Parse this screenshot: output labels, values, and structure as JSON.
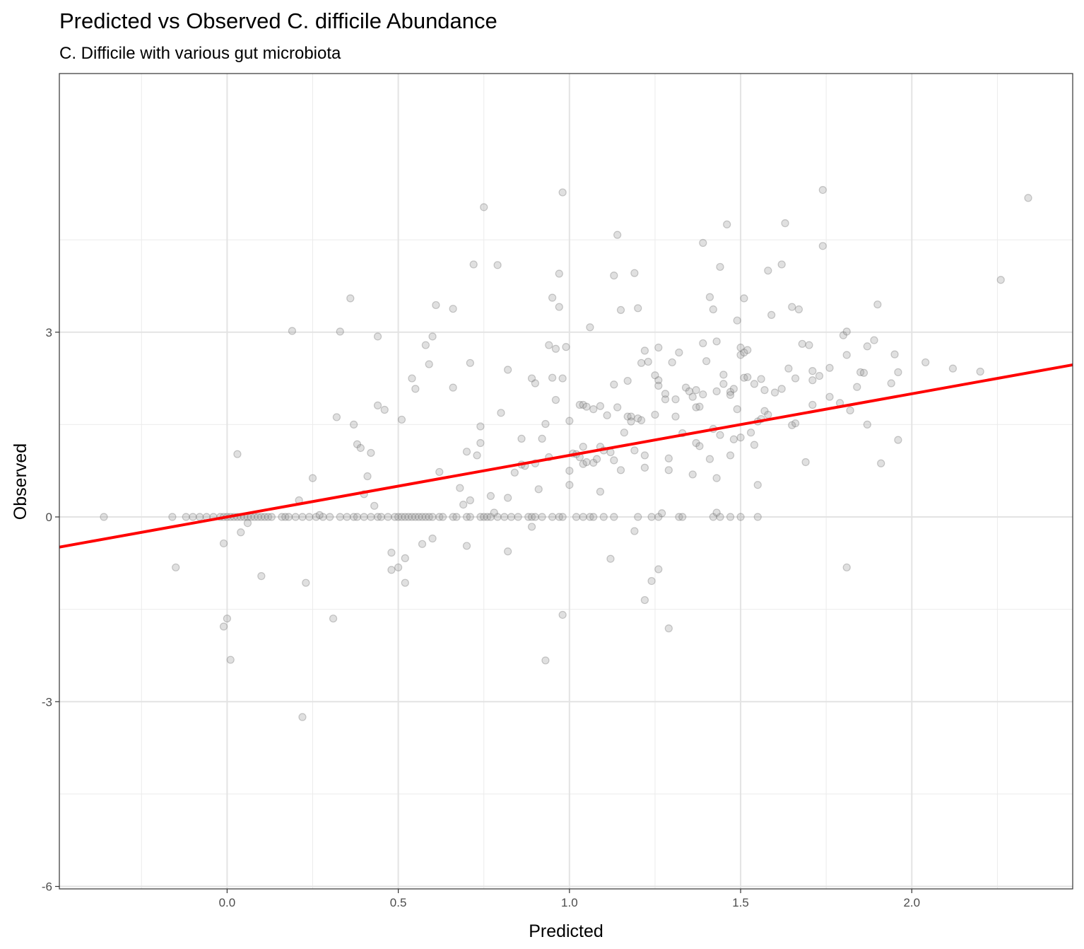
{
  "chart_data": {
    "type": "scatter",
    "title": "Predicted vs Observed C. difficile Abundance",
    "subtitle": "C. Difficile with various gut microbiota",
    "xlabel": "Predicted",
    "ylabel": "Observed",
    "xlim": [
      -0.49,
      2.47
    ],
    "ylim": [
      -6.04,
      7.2
    ],
    "x_ticks": [
      0.0,
      0.5,
      1.0,
      1.5,
      2.0
    ],
    "x_tick_labels": [
      "0.0",
      "0.5",
      "1.0",
      "1.5",
      "2.0"
    ],
    "y_ticks": [
      -6,
      -3,
      0,
      3
    ],
    "y_tick_labels": [
      "-6",
      "-3",
      "0",
      "3"
    ],
    "grid": true,
    "legend": "none",
    "point_color": "#999999",
    "point_opacity": 0.3,
    "fit_line": {
      "color": "#ff0000",
      "intercept": 0.0,
      "slope": 1.0
    },
    "points": [
      [
        -0.36,
        0
      ],
      [
        -0.16,
        0
      ],
      [
        -0.12,
        0
      ],
      [
        -0.1,
        0
      ],
      [
        -0.08,
        0
      ],
      [
        -0.06,
        0
      ],
      [
        -0.04,
        0
      ],
      [
        -0.02,
        0
      ],
      [
        -0.01,
        0
      ],
      [
        0,
        0
      ],
      [
        0.01,
        0
      ],
      [
        0.02,
        0
      ],
      [
        0.03,
        0
      ],
      [
        0.04,
        0
      ],
      [
        0.05,
        0
      ],
      [
        0.06,
        0
      ],
      [
        0.07,
        0
      ],
      [
        0.08,
        0
      ],
      [
        0.09,
        0
      ],
      [
        0.1,
        0
      ],
      [
        0.11,
        0
      ],
      [
        0.12,
        0
      ],
      [
        0.13,
        0
      ],
      [
        0.16,
        0
      ],
      [
        0.17,
        0
      ],
      [
        0.18,
        0
      ],
      [
        0.2,
        0
      ],
      [
        0.22,
        0
      ],
      [
        0.24,
        0
      ],
      [
        0.26,
        0
      ],
      [
        0.28,
        0
      ],
      [
        0.3,
        0
      ],
      [
        0.33,
        0
      ],
      [
        0.35,
        0
      ],
      [
        0.37,
        0
      ],
      [
        0.38,
        0
      ],
      [
        0.4,
        0
      ],
      [
        0.42,
        0
      ],
      [
        0.44,
        0
      ],
      [
        0.45,
        0
      ],
      [
        0.47,
        0
      ],
      [
        0.49,
        0
      ],
      [
        0.5,
        0
      ],
      [
        0.51,
        0
      ],
      [
        0.52,
        0
      ],
      [
        0.53,
        0
      ],
      [
        0.54,
        0
      ],
      [
        0.55,
        0
      ],
      [
        0.56,
        0
      ],
      [
        0.57,
        0
      ],
      [
        0.58,
        0
      ],
      [
        0.59,
        0
      ],
      [
        0.6,
        0
      ],
      [
        0.62,
        0
      ],
      [
        0.63,
        0
      ],
      [
        0.66,
        0
      ],
      [
        0.67,
        0
      ],
      [
        0.7,
        0
      ],
      [
        0.71,
        0
      ],
      [
        0.74,
        0
      ],
      [
        0.75,
        0
      ],
      [
        0.76,
        0
      ],
      [
        0.77,
        0
      ],
      [
        0.79,
        0
      ],
      [
        0.81,
        0
      ],
      [
        0.83,
        0
      ],
      [
        0.85,
        0
      ],
      [
        0.88,
        0
      ],
      [
        0.89,
        0
      ],
      [
        0.9,
        0
      ],
      [
        0.92,
        0
      ],
      [
        0.95,
        0
      ],
      [
        0.97,
        0
      ],
      [
        0.98,
        0
      ],
      [
        1.02,
        0
      ],
      [
        1.04,
        0
      ],
      [
        1.06,
        0
      ],
      [
        1.07,
        0
      ],
      [
        1.1,
        0
      ],
      [
        1.13,
        0
      ],
      [
        1.2,
        0
      ],
      [
        1.24,
        0
      ],
      [
        1.26,
        0
      ],
      [
        1.32,
        0
      ],
      [
        1.33,
        0
      ],
      [
        1.42,
        0
      ],
      [
        1.44,
        0
      ],
      [
        1.47,
        0
      ],
      [
        1.5,
        0
      ],
      [
        1.55,
        0
      ],
      [
        0.03,
        1.02
      ],
      [
        0.04,
        -0.25
      ],
      [
        -0.01,
        -0.43
      ],
      [
        -0.15,
        -0.82
      ],
      [
        0.1,
        -0.96
      ],
      [
        -0.01,
        -1.78
      ],
      [
        0,
        -1.65
      ],
      [
        0.01,
        -2.32
      ],
      [
        0.06,
        -0.1
      ],
      [
        0.19,
        3.02
      ],
      [
        0.21,
        0.27
      ],
      [
        0.23,
        -1.07
      ],
      [
        0.22,
        -3.25
      ],
      [
        0.25,
        0.63
      ],
      [
        0.27,
        0.03
      ],
      [
        0.31,
        -1.65
      ],
      [
        0.32,
        1.62
      ],
      [
        0.33,
        3.01
      ],
      [
        0.36,
        3.55
      ],
      [
        0.37,
        1.5
      ],
      [
        0.38,
        1.18
      ],
      [
        0.39,
        1.12
      ],
      [
        0.4,
        0.37
      ],
      [
        0.41,
        0.66
      ],
      [
        0.42,
        1.04
      ],
      [
        0.43,
        0.18
      ],
      [
        0.44,
        2.93
      ],
      [
        0.44,
        1.81
      ],
      [
        0.46,
        1.74
      ],
      [
        0.48,
        -0.58
      ],
      [
        0.48,
        -0.86
      ],
      [
        0.5,
        -0.82
      ],
      [
        0.51,
        1.58
      ],
      [
        0.52,
        -0.67
      ],
      [
        0.52,
        -1.07
      ],
      [
        0.54,
        2.25
      ],
      [
        0.55,
        2.08
      ],
      [
        0.57,
        -0.44
      ],
      [
        0.58,
        2.79
      ],
      [
        0.59,
        2.48
      ],
      [
        0.6,
        2.93
      ],
      [
        0.6,
        -0.35
      ],
      [
        0.61,
        3.44
      ],
      [
        0.62,
        0.73
      ],
      [
        0.66,
        3.38
      ],
      [
        0.66,
        2.1
      ],
      [
        0.68,
        0.47
      ],
      [
        0.69,
        0.2
      ],
      [
        0.7,
        1.06
      ],
      [
        0.7,
        -0.47
      ],
      [
        0.71,
        2.5
      ],
      [
        0.71,
        0.27
      ],
      [
        0.72,
        4.1
      ],
      [
        0.73,
        1
      ],
      [
        0.74,
        1.47
      ],
      [
        0.74,
        1.2
      ],
      [
        0.75,
        5.03
      ],
      [
        0.77,
        0.34
      ],
      [
        0.78,
        0.07
      ],
      [
        0.79,
        4.09
      ],
      [
        0.8,
        1.69
      ],
      [
        0.82,
        2.39
      ],
      [
        0.82,
        -0.56
      ],
      [
        0.82,
        0.31
      ],
      [
        0.84,
        0.72
      ],
      [
        0.86,
        1.27
      ],
      [
        0.86,
        0.85
      ],
      [
        0.87,
        0.83
      ],
      [
        0.89,
        2.25
      ],
      [
        0.89,
        -0.16
      ],
      [
        0.9,
        2.17
      ],
      [
        0.9,
        0.87
      ],
      [
        0.91,
        0.45
      ],
      [
        0.92,
        1.27
      ],
      [
        0.93,
        -2.33
      ],
      [
        0.93,
        1.51
      ],
      [
        0.94,
        2.79
      ],
      [
        0.94,
        0.97
      ],
      [
        0.95,
        3.56
      ],
      [
        0.95,
        2.26
      ],
      [
        0.96,
        2.73
      ],
      [
        0.96,
        1.9
      ],
      [
        0.97,
        3.95
      ],
      [
        0.97,
        3.41
      ],
      [
        0.98,
        5.27
      ],
      [
        0.98,
        2.25
      ],
      [
        0.98,
        -1.59
      ],
      [
        0.99,
        2.76
      ],
      [
        1,
        1.56
      ],
      [
        1,
        0.75
      ],
      [
        1,
        0.52
      ],
      [
        1.01,
        1.03
      ],
      [
        1.02,
        1.02
      ],
      [
        1.03,
        0.97
      ],
      [
        1.03,
        1.82
      ],
      [
        1.04,
        1.82
      ],
      [
        1.04,
        1.14
      ],
      [
        1.04,
        0.86
      ],
      [
        1.05,
        0.89
      ],
      [
        1.05,
        1.79
      ],
      [
        1.06,
        3.08
      ],
      [
        1.07,
        1.75
      ],
      [
        1.07,
        0.88
      ],
      [
        1.08,
        0.94
      ],
      [
        1.09,
        1.14
      ],
      [
        1.09,
        1.8
      ],
      [
        1.09,
        0.41
      ],
      [
        1.1,
        1.08
      ],
      [
        1.11,
        1.65
      ],
      [
        1.12,
        -0.68
      ],
      [
        1.12,
        1.05
      ],
      [
        1.13,
        3.92
      ],
      [
        1.13,
        2.15
      ],
      [
        1.13,
        0.92
      ],
      [
        1.14,
        1.78
      ],
      [
        1.14,
        4.58
      ],
      [
        1.15,
        0.76
      ],
      [
        1.15,
        3.36
      ],
      [
        1.16,
        1.37
      ],
      [
        1.17,
        2.21
      ],
      [
        1.17,
        1.63
      ],
      [
        1.18,
        1.63
      ],
      [
        1.18,
        1.55
      ],
      [
        1.19,
        3.96
      ],
      [
        1.19,
        1.08
      ],
      [
        1.19,
        -0.23
      ],
      [
        1.2,
        1.6
      ],
      [
        1.2,
        3.39
      ],
      [
        1.21,
        2.5
      ],
      [
        1.21,
        1.57
      ],
      [
        1.22,
        0.8
      ],
      [
        1.22,
        1
      ],
      [
        1.22,
        2.7
      ],
      [
        1.22,
        -1.35
      ],
      [
        1.23,
        2.52
      ],
      [
        1.24,
        -1.04
      ],
      [
        1.25,
        2.3
      ],
      [
        1.25,
        1.66
      ],
      [
        1.26,
        2.22
      ],
      [
        1.26,
        2.13
      ],
      [
        1.26,
        2.75
      ],
      [
        1.26,
        -0.85
      ],
      [
        1.27,
        0.06
      ],
      [
        1.28,
        1.91
      ],
      [
        1.28,
        2
      ],
      [
        1.29,
        0.95
      ],
      [
        1.29,
        0.76
      ],
      [
        1.29,
        -1.81
      ],
      [
        1.3,
        2.51
      ],
      [
        1.31,
        1.91
      ],
      [
        1.31,
        1.63
      ],
      [
        1.32,
        2.67
      ],
      [
        1.33,
        1.36
      ],
      [
        1.34,
        2.1
      ],
      [
        1.35,
        2.04
      ],
      [
        1.36,
        1.95
      ],
      [
        1.36,
        0.69
      ],
      [
        1.37,
        2.06
      ],
      [
        1.37,
        1.2
      ],
      [
        1.37,
        1.78
      ],
      [
        1.38,
        1.79
      ],
      [
        1.38,
        1.15
      ],
      [
        1.39,
        4.45
      ],
      [
        1.39,
        2.82
      ],
      [
        1.39,
        1.99
      ],
      [
        1.4,
        2.53
      ],
      [
        1.41,
        3.57
      ],
      [
        1.41,
        0.94
      ],
      [
        1.42,
        3.37
      ],
      [
        1.42,
        1.43
      ],
      [
        1.43,
        2.85
      ],
      [
        1.43,
        2.04
      ],
      [
        1.43,
        0.63
      ],
      [
        1.43,
        0.07
      ],
      [
        1.44,
        4.06
      ],
      [
        1.44,
        1.33
      ],
      [
        1.45,
        2.31
      ],
      [
        1.45,
        2.16
      ],
      [
        1.46,
        4.75
      ],
      [
        1.47,
        2.03
      ],
      [
        1.47,
        1.98
      ],
      [
        1.47,
        1
      ],
      [
        1.48,
        2.08
      ],
      [
        1.48,
        1.26
      ],
      [
        1.49,
        3.19
      ],
      [
        1.49,
        1.75
      ],
      [
        1.5,
        2.75
      ],
      [
        1.5,
        1.29
      ],
      [
        1.5,
        2.63
      ],
      [
        1.51,
        3.55
      ],
      [
        1.51,
        2.26
      ],
      [
        1.51,
        2.67
      ],
      [
        1.52,
        2.27
      ],
      [
        1.52,
        2.71
      ],
      [
        1.53,
        1.37
      ],
      [
        1.54,
        2.16
      ],
      [
        1.54,
        1.17
      ],
      [
        1.55,
        0.52
      ],
      [
        1.55,
        1.55
      ],
      [
        1.56,
        2.24
      ],
      [
        1.56,
        1.59
      ],
      [
        1.57,
        2.06
      ],
      [
        1.57,
        1.72
      ],
      [
        1.58,
        1.66
      ],
      [
        1.58,
        4
      ],
      [
        1.59,
        3.28
      ],
      [
        1.6,
        2.02
      ],
      [
        1.62,
        2.08
      ],
      [
        1.62,
        4.1
      ],
      [
        1.63,
        4.77
      ],
      [
        1.64,
        2.41
      ],
      [
        1.65,
        1.49
      ],
      [
        1.65,
        3.41
      ],
      [
        1.66,
        2.25
      ],
      [
        1.66,
        1.52
      ],
      [
        1.67,
        3.37
      ],
      [
        1.68,
        2.81
      ],
      [
        1.69,
        0.89
      ],
      [
        1.7,
        2.79
      ],
      [
        1.71,
        2.22
      ],
      [
        1.71,
        2.37
      ],
      [
        1.71,
        1.82
      ],
      [
        1.73,
        2.29
      ],
      [
        1.74,
        4.4
      ],
      [
        1.74,
        5.31
      ],
      [
        1.76,
        2.42
      ],
      [
        1.76,
        1.95
      ],
      [
        1.79,
        1.85
      ],
      [
        1.8,
        2.95
      ],
      [
        1.81,
        2.63
      ],
      [
        1.81,
        3.01
      ],
      [
        1.81,
        -0.82
      ],
      [
        1.82,
        1.73
      ],
      [
        1.84,
        2.11
      ],
      [
        1.85,
        2.35
      ],
      [
        1.86,
        2.34
      ],
      [
        1.87,
        1.5
      ],
      [
        1.87,
        2.77
      ],
      [
        1.89,
        2.87
      ],
      [
        1.9,
        3.45
      ],
      [
        1.91,
        0.87
      ],
      [
        1.94,
        2.17
      ],
      [
        1.95,
        2.64
      ],
      [
        1.96,
        2.35
      ],
      [
        1.96,
        1.25
      ],
      [
        2.04,
        2.51
      ],
      [
        2.12,
        2.41
      ],
      [
        2.2,
        2.36
      ],
      [
        2.26,
        3.85
      ],
      [
        2.34,
        5.18
      ]
    ]
  }
}
